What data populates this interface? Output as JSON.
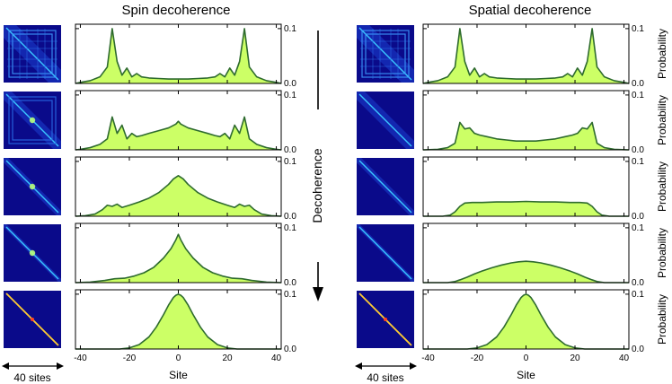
{
  "chart_data": {
    "type": "area",
    "shared": {
      "xlabel": "Site",
      "ylabel": "Probability",
      "xlim": [
        -42,
        42
      ],
      "ylim": [
        0,
        0.1
      ],
      "xticks": [
        -40,
        -20,
        0,
        20,
        40
      ],
      "yticks": [
        "0.0",
        "0.1"
      ],
      "fill_color": "#ccff66",
      "line_color": "#2e6b2e",
      "heatmap_bg": "#0a0a8a",
      "scale_label": "40 sites",
      "arrow_label": "Decoherence"
    },
    "columns": [
      {
        "title": "Spin decoherence",
        "panels": [
          {
            "x": [
              -42,
              -40,
              -36,
              -32,
              -29,
              -27,
              -25,
              -23,
              -21,
              -19,
              -17,
              -15,
              -12,
              -8,
              -4,
              0,
              4,
              8,
              12,
              15,
              17,
              19,
              21,
              23,
              25,
              27,
              29,
              32,
              36,
              40,
              42
            ],
            "y": [
              0,
              0.002,
              0.005,
              0.012,
              0.03,
              0.1,
              0.04,
              0.015,
              0.028,
              0.012,
              0.018,
              0.012,
              0.01,
              0.009,
              0.008,
              0.008,
              0.008,
              0.009,
              0.01,
              0.012,
              0.018,
              0.012,
              0.028,
              0.015,
              0.04,
              0.1,
              0.03,
              0.012,
              0.005,
              0.002,
              0
            ]
          },
          {
            "x": [
              -42,
              -40,
              -36,
              -32,
              -29,
              -27,
              -25,
              -23,
              -21,
              -19,
              -17,
              -15,
              -12,
              -8,
              -4,
              -1,
              0,
              1,
              4,
              8,
              12,
              15,
              17,
              19,
              21,
              23,
              25,
              27,
              29,
              32,
              36,
              40,
              42
            ],
            "y": [
              0,
              0.001,
              0.004,
              0.01,
              0.02,
              0.06,
              0.03,
              0.045,
              0.02,
              0.03,
              0.024,
              0.026,
              0.03,
              0.035,
              0.04,
              0.047,
              0.052,
              0.047,
              0.04,
              0.035,
              0.03,
              0.026,
              0.024,
              0.03,
              0.02,
              0.045,
              0.03,
              0.06,
              0.02,
              0.01,
              0.004,
              0.001,
              0
            ]
          },
          {
            "x": [
              -42,
              -38,
              -34,
              -31,
              -29,
              -27,
              -25,
              -23,
              -20,
              -16,
              -12,
              -8,
              -4,
              -2,
              0,
              2,
              4,
              8,
              12,
              16,
              20,
              23,
              25,
              27,
              29,
              31,
              34,
              38,
              42
            ],
            "y": [
              0,
              0.001,
              0.004,
              0.012,
              0.02,
              0.018,
              0.022,
              0.016,
              0.02,
              0.026,
              0.033,
              0.043,
              0.058,
              0.068,
              0.074,
              0.068,
              0.058,
              0.043,
              0.033,
              0.026,
              0.02,
              0.016,
              0.022,
              0.018,
              0.02,
              0.012,
              0.004,
              0.001,
              0
            ]
          },
          {
            "x": [
              -42,
              -36,
              -30,
              -26,
              -22,
              -18,
              -14,
              -10,
              -6,
              -3,
              -1,
              0,
              1,
              3,
              6,
              10,
              14,
              18,
              22,
              26,
              30,
              36,
              42
            ],
            "y": [
              0,
              0.001,
              0.004,
              0.007,
              0.008,
              0.012,
              0.018,
              0.028,
              0.045,
              0.062,
              0.078,
              0.088,
              0.078,
              0.062,
              0.045,
              0.028,
              0.018,
              0.012,
              0.008,
              0.007,
              0.004,
              0.001,
              0
            ]
          },
          {
            "x": [
              -42,
              -24,
              -20,
              -16,
              -12,
              -9,
              -6,
              -4,
              -2,
              -1,
              0,
              1,
              2,
              4,
              6,
              9,
              12,
              16,
              20,
              24,
              42
            ],
            "y": [
              0,
              0,
              0.002,
              0.008,
              0.022,
              0.04,
              0.063,
              0.08,
              0.094,
              0.098,
              0.1,
              0.098,
              0.094,
              0.08,
              0.063,
              0.04,
              0.022,
              0.008,
              0.002,
              0,
              0
            ]
          }
        ]
      },
      {
        "title": "Spatial decoherence",
        "panels": [
          {
            "x": [
              -42,
              -40,
              -36,
              -32,
              -29,
              -27,
              -25,
              -23,
              -21,
              -19,
              -17,
              -15,
              -12,
              -8,
              -4,
              0,
              4,
              8,
              12,
              15,
              17,
              19,
              21,
              23,
              25,
              27,
              29,
              32,
              36,
              40,
              42
            ],
            "y": [
              0,
              0.002,
              0.005,
              0.012,
              0.03,
              0.1,
              0.04,
              0.015,
              0.028,
              0.012,
              0.018,
              0.012,
              0.01,
              0.009,
              0.008,
              0.008,
              0.008,
              0.009,
              0.01,
              0.012,
              0.018,
              0.012,
              0.028,
              0.015,
              0.04,
              0.1,
              0.03,
              0.012,
              0.005,
              0.002,
              0
            ]
          },
          {
            "x": [
              -42,
              -36,
              -32,
              -29,
              -27,
              -25,
              -23,
              -21,
              -19,
              -16,
              -12,
              -8,
              -4,
              0,
              4,
              8,
              12,
              16,
              19,
              21,
              23,
              25,
              27,
              29,
              32,
              36,
              42
            ],
            "y": [
              0,
              0.001,
              0.004,
              0.012,
              0.05,
              0.038,
              0.04,
              0.03,
              0.027,
              0.024,
              0.02,
              0.018,
              0.016,
              0.016,
              0.016,
              0.018,
              0.02,
              0.024,
              0.027,
              0.03,
              0.04,
              0.038,
              0.05,
              0.012,
              0.004,
              0.001,
              0
            ]
          },
          {
            "x": [
              -42,
              -34,
              -31,
              -29,
              -27,
              -25,
              -22,
              -18,
              -12,
              -6,
              0,
              6,
              12,
              18,
              22,
              25,
              27,
              29,
              31,
              34,
              42
            ],
            "y": [
              0,
              0,
              0.002,
              0.008,
              0.018,
              0.024,
              0.025,
              0.025,
              0.026,
              0.026,
              0.027,
              0.026,
              0.026,
              0.025,
              0.025,
              0.024,
              0.018,
              0.008,
              0.002,
              0,
              0
            ]
          },
          {
            "x": [
              -42,
              -32,
              -29,
              -27,
              -24,
              -21,
              -18,
              -14,
              -10,
              -6,
              -3,
              0,
              3,
              6,
              10,
              14,
              18,
              21,
              24,
              27,
              29,
              32,
              42
            ],
            "y": [
              0,
              0,
              0.002,
              0.005,
              0.01,
              0.016,
              0.021,
              0.027,
              0.032,
              0.036,
              0.038,
              0.039,
              0.038,
              0.036,
              0.032,
              0.027,
              0.021,
              0.016,
              0.01,
              0.005,
              0.002,
              0,
              0
            ]
          },
          {
            "x": [
              -42,
              -24,
              -20,
              -16,
              -12,
              -9,
              -6,
              -4,
              -2,
              -1,
              0,
              1,
              2,
              4,
              6,
              9,
              12,
              16,
              20,
              24,
              42
            ],
            "y": [
              0,
              0,
              0.002,
              0.008,
              0.022,
              0.04,
              0.063,
              0.08,
              0.094,
              0.098,
              0.1,
              0.098,
              0.094,
              0.08,
              0.063,
              0.04,
              0.022,
              0.008,
              0.002,
              0,
              0
            ]
          }
        ]
      }
    ]
  }
}
